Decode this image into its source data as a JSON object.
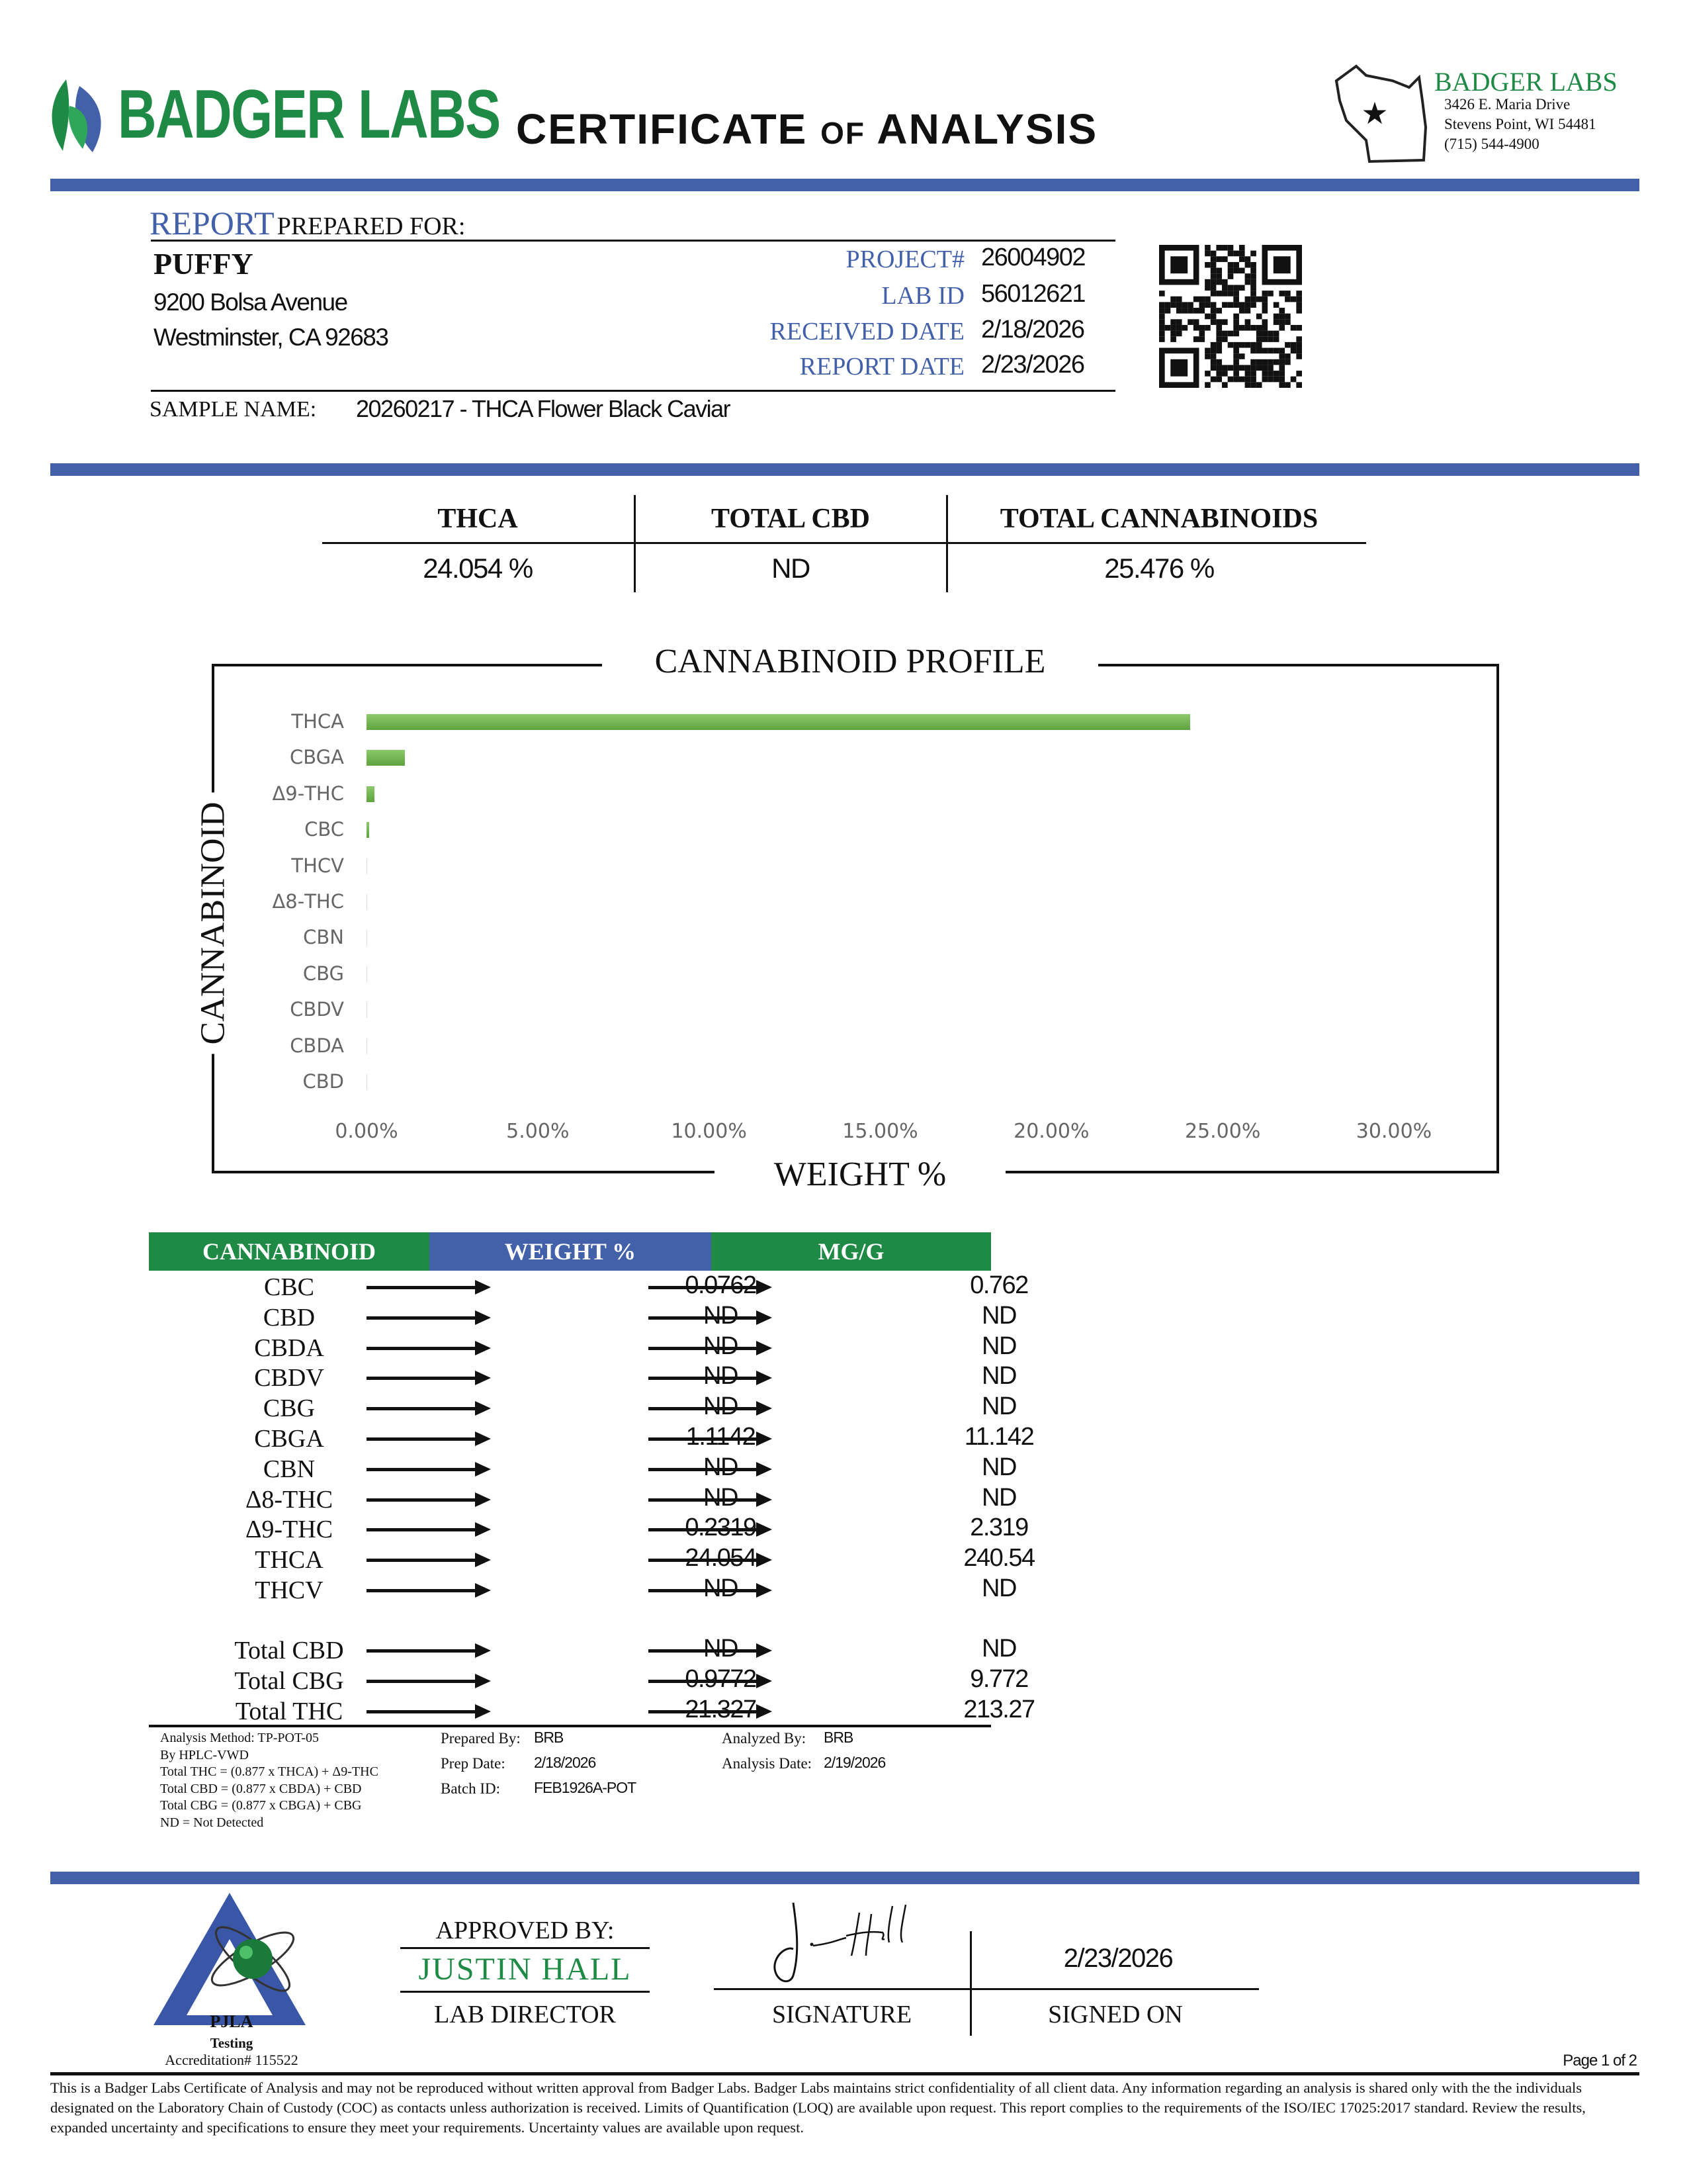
{
  "header": {
    "logo_text": "BADGER LABS",
    "title_part1": "CERTIFICATE",
    "title_of": "OF",
    "title_part2": "ANALYSIS",
    "lab_name": "BADGER LABS",
    "address1": "3426 E. Maria Drive",
    "address2": "Stevens Point, WI 54481",
    "phone": "(715) 544-4900"
  },
  "client": {
    "report_label": "REPORT",
    "prepared_for_label": "PREPARED FOR:",
    "name": "PUFFY",
    "street": "9200 Bolsa Avenue",
    "city": "Westminster, CA 92683",
    "sample_name_label": "SAMPLE NAME:",
    "sample_name": "20260217 - THCA Flower Black Caviar"
  },
  "project": [
    {
      "label": "PROJECT#",
      "value": "26004902"
    },
    {
      "label": "LAB ID",
      "value": "56012621"
    },
    {
      "label": "RECEIVED DATE",
      "value": "2/18/2026"
    },
    {
      "label": "REPORT DATE",
      "value": "2/23/2026"
    }
  ],
  "summary": [
    {
      "label": "THCA",
      "value": "24.054 %"
    },
    {
      "label": "TOTAL CBD",
      "value": "ND"
    },
    {
      "label": "TOTAL CANNABINOIDS",
      "value": "25.476 %"
    }
  ],
  "chart_data": {
    "type": "bar",
    "orientation": "horizontal",
    "title": "CANNABINOID PROFILE",
    "xlabel": "WEIGHT %",
    "ylabel": "CANNABINOID",
    "categories": [
      "THCA",
      "CBGA",
      "Δ9-THC",
      "CBC",
      "THCV",
      "Δ8-THC",
      "CBN",
      "CBG",
      "CBDV",
      "CBDA",
      "CBD"
    ],
    "values": [
      24.054,
      1.1142,
      0.2319,
      0.0762,
      0,
      0,
      0,
      0,
      0,
      0,
      0
    ],
    "xlim": [
      0,
      30
    ],
    "xticks": [
      "0.00%",
      "5.00%",
      "10.00%",
      "15.00%",
      "20.00%",
      "25.00%",
      "30.00%"
    ],
    "bar_color": "#6ab04c",
    "grid": false
  },
  "results": {
    "headers": [
      "CANNABINOID",
      "WEIGHT %",
      "MG/G"
    ],
    "header_colors": [
      "#1e8a45",
      "#4361a8",
      "#1e8a45"
    ],
    "rows": [
      {
        "name": "CBC",
        "weight": "0.0762",
        "mg": "0.762"
      },
      {
        "name": "CBD",
        "weight": "ND",
        "mg": "ND"
      },
      {
        "name": "CBDA",
        "weight": "ND",
        "mg": "ND"
      },
      {
        "name": "CBDV",
        "weight": "ND",
        "mg": "ND"
      },
      {
        "name": "CBG",
        "weight": "ND",
        "mg": "ND"
      },
      {
        "name": "CBGA",
        "weight": "1.1142",
        "mg": "11.142"
      },
      {
        "name": "CBN",
        "weight": "ND",
        "mg": "ND"
      },
      {
        "name": "Δ8-THC",
        "weight": "ND",
        "mg": "ND"
      },
      {
        "name": "Δ9-THC",
        "weight": "0.2319",
        "mg": "2.319"
      },
      {
        "name": "THCA",
        "weight": "24.054",
        "mg": "240.54"
      },
      {
        "name": "THCV",
        "weight": "ND",
        "mg": "ND"
      }
    ],
    "totals": [
      {
        "name": "Total CBD",
        "weight": "ND",
        "mg": "ND"
      },
      {
        "name": "Total CBG",
        "weight": "0.9772",
        "mg": "9.772"
      },
      {
        "name": "Total THC",
        "weight": "21.327",
        "mg": "213.27"
      }
    ]
  },
  "notes": [
    "Analysis Method: TP-POT-05",
    "By HPLC-VWD",
    "Total THC = (0.877 x  THCA) + Δ9-THC",
    "Total CBD = (0.877 x  CBDA) + CBD",
    "Total CBG = (0.877 x  CBGA) + CBG",
    "ND = Not Detected"
  ],
  "prep": {
    "prepared_by_label": "Prepared By:",
    "prepared_by": "BRB",
    "prep_date_label": "Prep Date:",
    "prep_date": "2/18/2026",
    "batch_label": "Batch ID:",
    "batch": "FEB1926A-POT",
    "analyzed_by_label": "Analyzed By:",
    "analyzed_by": "BRB",
    "analysis_date_label": "Analysis Date:",
    "analysis_date": "2/19/2026"
  },
  "approval": {
    "approved_label": "APPROVED BY:",
    "approver": "JUSTIN HALL",
    "role": "LAB DIRECTOR",
    "signature_label": "SIGNATURE",
    "signed_on_label": "SIGNED ON",
    "signed_date": "2/23/2026",
    "pjla_name": "PJLA",
    "pjla_sub": "Testing",
    "accreditation": "Accreditation# 115522"
  },
  "footer": {
    "page": "Page 1 of 2",
    "disclaimer": "This is a Badger Labs Certificate of Analysis and may not be reproduced without written approval from Badger Labs. Badger Labs maintains strict confidentiality of all client data. Any information regarding an analysis is shared only with the the individuals designated on the Laboratory Chain of Custody (COC) as contacts unless authorization is received. Limits of Quantification (LOQ) are available upon request. This report complies to the requirements of the ISO/IEC 17025:2017 standard. Review the results, expanded uncertainty and specifications to ensure they meet your requirements. Uncertainty values are available upon request."
  }
}
